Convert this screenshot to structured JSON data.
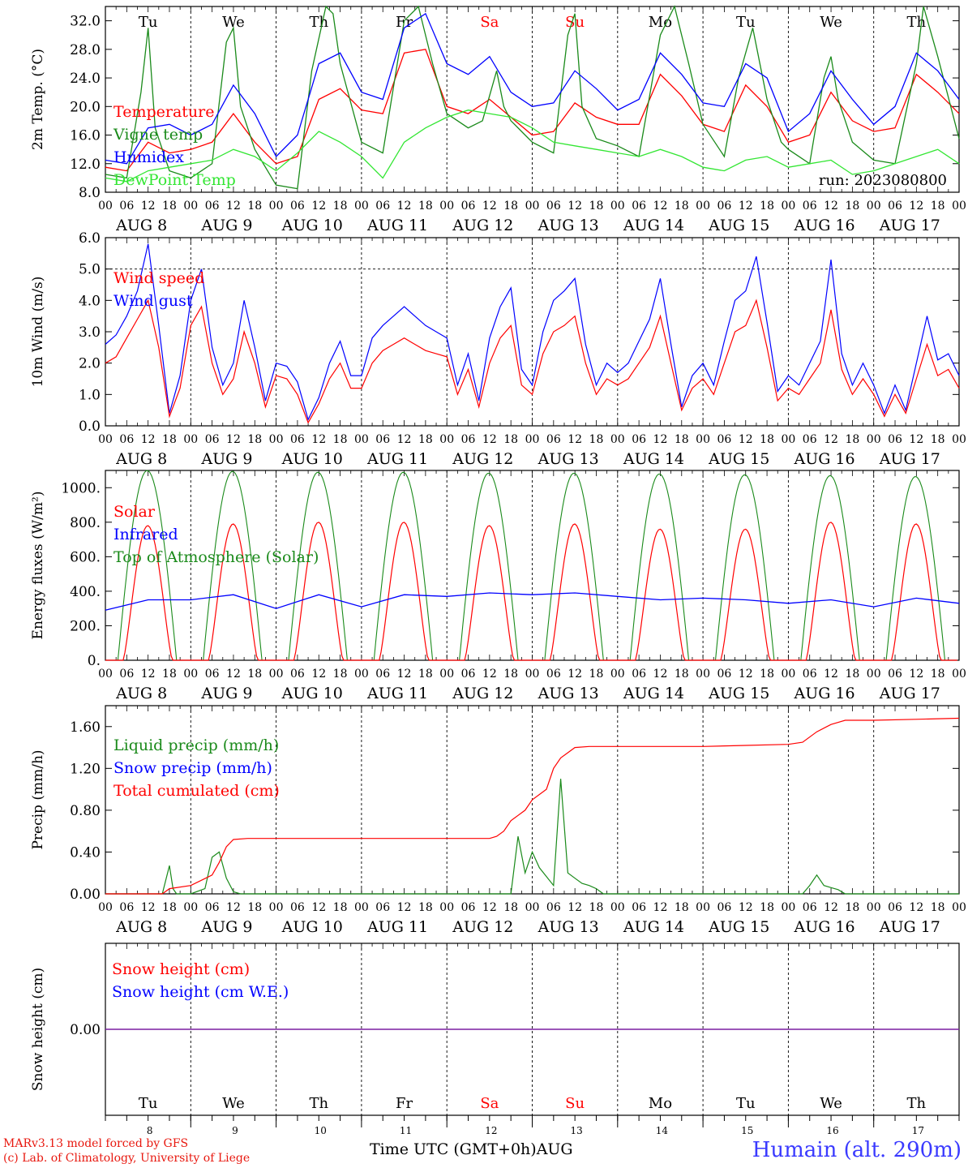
{
  "colors": {
    "red": "#ff0000",
    "green": "#1a8a1a",
    "lightgreen": "#33e633",
    "blue": "#0000ff",
    "purple": "#7a1fa0",
    "black": "#000000"
  },
  "days": [
    "AUG  8",
    "AUG  9",
    "AUG 10",
    "AUG 11",
    "AUG 12",
    "AUG 13",
    "AUG 14",
    "AUG 15",
    "AUG 16",
    "AUG 17"
  ],
  "weekdays": [
    "Tu",
    "We",
    "Th",
    "Fr",
    "Sa",
    "Su",
    "Mo",
    "Tu",
    "We",
    "Th"
  ],
  "weekday_colors": [
    "#000000",
    "#000000",
    "#000000",
    "#000000",
    "#ff0000",
    "#ff0000",
    "#000000",
    "#000000",
    "#000000",
    "#000000"
  ],
  "hour_ticks": [
    "00",
    "06",
    "12",
    "18"
  ],
  "bottom_day_numbers": [
    "8",
    "9",
    "10",
    "11",
    "12",
    "13",
    "14",
    "15",
    "16",
    "17"
  ],
  "footer": {
    "credit_line1": "MARv3.13 model forced by GFS",
    "credit_line2": "(c) Lab. of Climatology, University of Liege",
    "time_label": "Time UTC (GMT+0h)AUG",
    "station": "Humain (alt. 290m)"
  },
  "chart_data": [
    {
      "type": "line",
      "ylabel": "2m Temp. (°C)",
      "ylim": [
        8,
        34
      ],
      "yticks": [
        "8.0",
        "12.0",
        "16.0",
        "20.0",
        "24.0",
        "28.0",
        "32.0"
      ],
      "annotation": "run: 2023080800",
      "x_unit": "hours since Aug 8 00 UTC",
      "legend": [
        "Temperature",
        "Vigne temp",
        "Humidex",
        "DewPoint Temp"
      ],
      "series": [
        {
          "name": "Temperature",
          "color": "#ff0000",
          "x": [
            0,
            6,
            12,
            18,
            24,
            30,
            36,
            42,
            48,
            54,
            60,
            66,
            72,
            78,
            84,
            90,
            96,
            102,
            108,
            114,
            120,
            126,
            132,
            138,
            144,
            150,
            156,
            162,
            168,
            174,
            180,
            186,
            192,
            198,
            204,
            210,
            216,
            222,
            228,
            234,
            240
          ],
          "y": [
            11.5,
            11.0,
            15.0,
            13.5,
            14.0,
            15.0,
            19.0,
            15.0,
            12.0,
            13.0,
            21.0,
            22.5,
            19.5,
            19.0,
            27.5,
            28.0,
            20.0,
            19.0,
            21.0,
            18.5,
            16.0,
            16.5,
            20.5,
            18.5,
            17.5,
            17.5,
            24.5,
            21.5,
            17.5,
            16.5,
            23.0,
            20.0,
            15.0,
            16.0,
            22.0,
            18.0,
            16.5,
            17.0,
            24.5,
            22.0,
            19.0
          ]
        },
        {
          "name": "Vigne temp",
          "color": "#1a8a1a",
          "x": [
            0,
            6,
            10,
            12,
            14,
            18,
            24,
            30,
            34,
            36,
            38,
            42,
            48,
            54,
            58,
            62,
            64,
            66,
            72,
            78,
            84,
            88,
            92,
            96,
            102,
            106,
            110,
            112,
            114,
            118,
            120,
            126,
            130,
            132,
            134,
            138,
            144,
            150,
            156,
            160,
            164,
            168,
            174,
            178,
            182,
            184,
            186,
            190,
            192,
            198,
            202,
            204,
            206,
            210,
            216,
            222,
            228,
            230,
            234,
            240
          ],
          "y": [
            10.5,
            10.0,
            22.0,
            31.0,
            17.0,
            11.0,
            10.0,
            12.0,
            29.0,
            31.0,
            20.0,
            14.0,
            9.0,
            8.5,
            25.0,
            34.0,
            33.0,
            26.0,
            15.0,
            13.5,
            32.0,
            34.0,
            26.0,
            19.0,
            17.0,
            18.0,
            25.0,
            20.0,
            18.0,
            16.0,
            15.0,
            13.5,
            30.0,
            33.0,
            20.0,
            15.5,
            14.5,
            13.0,
            30.0,
            34.0,
            26.0,
            17.5,
            13.0,
            24.0,
            31.0,
            26.0,
            21.0,
            15.0,
            14.0,
            12.0,
            24.0,
            27.0,
            21.0,
            15.0,
            12.5,
            12.0,
            26.0,
            34.0,
            27.0,
            15.5
          ]
        },
        {
          "name": "Humidex",
          "color": "#0000ff",
          "x": [
            0,
            6,
            12,
            18,
            24,
            30,
            36,
            42,
            48,
            54,
            60,
            66,
            72,
            78,
            84,
            90,
            96,
            102,
            108,
            114,
            120,
            126,
            132,
            138,
            144,
            150,
            156,
            162,
            168,
            174,
            180,
            186,
            192,
            198,
            204,
            210,
            216,
            222,
            228,
            234,
            240
          ],
          "y": [
            12.5,
            12.0,
            17.0,
            17.5,
            16.0,
            17.5,
            23.0,
            19.0,
            13.0,
            16.0,
            26.0,
            27.5,
            22.0,
            21.0,
            31.0,
            33.0,
            26.0,
            24.5,
            27.0,
            22.0,
            20.0,
            20.5,
            25.0,
            22.5,
            19.5,
            21.0,
            27.5,
            24.5,
            20.5,
            20.0,
            26.0,
            24.0,
            16.5,
            19.0,
            25.0,
            21.0,
            17.5,
            20.0,
            27.5,
            25.0,
            21.0
          ]
        },
        {
          "name": "DewPoint Temp",
          "color": "#33e633",
          "x": [
            0,
            6,
            12,
            18,
            24,
            30,
            36,
            42,
            48,
            54,
            60,
            66,
            72,
            78,
            84,
            90,
            96,
            102,
            108,
            114,
            120,
            126,
            132,
            138,
            144,
            150,
            156,
            162,
            168,
            174,
            180,
            186,
            192,
            198,
            204,
            210,
            216,
            222,
            228,
            234,
            240
          ],
          "y": [
            10.0,
            9.5,
            11.0,
            11.5,
            12.0,
            12.5,
            14.0,
            13.0,
            11.0,
            13.5,
            16.5,
            15.0,
            13.0,
            10.0,
            15.0,
            17.0,
            18.5,
            19.5,
            19.0,
            18.5,
            17.0,
            15.0,
            14.5,
            14.0,
            13.5,
            13.0,
            14.0,
            13.0,
            11.5,
            11.0,
            12.5,
            13.0,
            11.5,
            12.0,
            12.5,
            10.5,
            11.0,
            12.0,
            13.0,
            14.0,
            12.0
          ]
        }
      ]
    },
    {
      "type": "line",
      "ylabel": "10m Wind (m/s)",
      "ylim": [
        0,
        6
      ],
      "yticks": [
        "0.0",
        "1.0",
        "2.0",
        "3.0",
        "4.0",
        "5.0",
        "6.0"
      ],
      "reference_line": 5.0,
      "legend": [
        "Wind speed",
        "Wind gust"
      ],
      "series": [
        {
          "name": "Wind speed",
          "color": "#ff0000",
          "x": [
            0,
            3,
            6,
            9,
            12,
            15,
            18,
            21,
            24,
            27,
            30,
            33,
            36,
            39,
            42,
            45,
            48,
            51,
            54,
            57,
            60,
            63,
            66,
            69,
            72,
            75,
            78,
            81,
            84,
            87,
            90,
            93,
            96,
            99,
            102,
            105,
            108,
            111,
            114,
            117,
            120,
            123,
            126,
            129,
            132,
            135,
            138,
            141,
            144,
            147,
            150,
            153,
            156,
            159,
            162,
            165,
            168,
            171,
            174,
            177,
            180,
            183,
            186,
            189,
            192,
            195,
            198,
            201,
            204,
            207,
            210,
            213,
            216,
            219,
            222,
            225,
            228,
            231,
            234,
            237,
            240
          ],
          "y": [
            2.0,
            2.2,
            2.8,
            3.4,
            4.0,
            2.5,
            0.3,
            1.2,
            3.2,
            3.8,
            2.0,
            1.0,
            1.5,
            3.0,
            2.0,
            0.6,
            1.6,
            1.5,
            1.0,
            0.1,
            0.7,
            1.5,
            2.0,
            1.2,
            1.2,
            2.0,
            2.4,
            2.6,
            2.8,
            2.6,
            2.4,
            2.3,
            2.2,
            1.0,
            1.8,
            0.6,
            2.0,
            2.8,
            3.2,
            1.3,
            1.0,
            2.3,
            3.0,
            3.2,
            3.5,
            2.0,
            1.0,
            1.5,
            1.3,
            1.5,
            2.0,
            2.5,
            3.5,
            2.0,
            0.5,
            1.2,
            1.5,
            1.0,
            2.0,
            3.0,
            3.2,
            4.0,
            2.5,
            0.8,
            1.2,
            1.0,
            1.5,
            2.0,
            3.7,
            1.8,
            1.0,
            1.5,
            1.0,
            0.3,
            1.0,
            0.4,
            1.5,
            2.6,
            1.6,
            1.8,
            1.2
          ]
        },
        {
          "name": "Wind gust",
          "color": "#0000ff",
          "x": [
            0,
            3,
            6,
            9,
            12,
            15,
            18,
            21,
            24,
            27,
            30,
            33,
            36,
            39,
            42,
            45,
            48,
            51,
            54,
            57,
            60,
            63,
            66,
            69,
            72,
            75,
            78,
            81,
            84,
            87,
            90,
            93,
            96,
            99,
            102,
            105,
            108,
            111,
            114,
            117,
            120,
            123,
            126,
            129,
            132,
            135,
            138,
            141,
            144,
            147,
            150,
            153,
            156,
            159,
            162,
            165,
            168,
            171,
            174,
            177,
            180,
            183,
            186,
            189,
            192,
            195,
            198,
            201,
            204,
            207,
            210,
            213,
            216,
            219,
            222,
            225,
            228,
            231,
            234,
            237,
            240
          ],
          "y": [
            2.6,
            2.9,
            3.5,
            4.3,
            5.8,
            3.2,
            0.4,
            1.6,
            4.0,
            5.0,
            2.5,
            1.3,
            2.0,
            4.0,
            2.5,
            0.8,
            2.0,
            1.9,
            1.4,
            0.2,
            0.9,
            2.0,
            2.7,
            1.6,
            1.6,
            2.8,
            3.2,
            3.5,
            3.8,
            3.5,
            3.2,
            3.0,
            2.8,
            1.3,
            2.3,
            0.8,
            2.8,
            3.8,
            4.4,
            1.8,
            1.3,
            3.0,
            4.0,
            4.3,
            4.7,
            2.6,
            1.3,
            2.0,
            1.7,
            2.0,
            2.7,
            3.4,
            4.7,
            2.6,
            0.6,
            1.6,
            2.0,
            1.3,
            2.7,
            4.0,
            4.3,
            5.4,
            3.3,
            1.1,
            1.6,
            1.3,
            2.0,
            2.7,
            5.3,
            2.3,
            1.3,
            2.0,
            1.3,
            0.4,
            1.3,
            0.5,
            2.0,
            3.5,
            2.1,
            2.3,
            1.6
          ]
        }
      ]
    },
    {
      "type": "line",
      "ylabel": "Energy fluxes (W/m²)",
      "ylim": [
        0,
        1100
      ],
      "yticks": [
        "0.",
        "200.",
        "400.",
        "600.",
        "800.",
        "1000."
      ],
      "legend": [
        "Solar",
        "Infrared",
        "Top of Atmosphere (Solar)"
      ],
      "toa_peaks": [
        1100,
        1095,
        1090,
        1090,
        1085,
        1085,
        1080,
        1075,
        1070,
        1065
      ],
      "solar_peaks": [
        780,
        790,
        800,
        800,
        780,
        790,
        760,
        760,
        800,
        790
      ],
      "infrared": {
        "name": "Infrared",
        "color": "#0000ff",
        "x": [
          0,
          12,
          24,
          36,
          48,
          60,
          72,
          84,
          96,
          108,
          120,
          132,
          144,
          156,
          168,
          180,
          192,
          204,
          216,
          228,
          240
        ],
        "y": [
          290,
          350,
          350,
          380,
          300,
          380,
          310,
          380,
          370,
          390,
          380,
          390,
          370,
          350,
          360,
          350,
          330,
          350,
          310,
          360,
          330
        ]
      }
    },
    {
      "type": "line",
      "ylabel": "Precip (mm/h)",
      "ylim": [
        0,
        1.8
      ],
      "yticks": [
        "0.00",
        "0.40",
        "0.80",
        "1.20",
        "1.60"
      ],
      "legend": [
        "Liquid precip (mm/h)",
        "Snow precip (mm/h)",
        "Total cumulated (cm)"
      ],
      "series": [
        {
          "name": "Liquid precip (mm/h)",
          "color": "#1a8a1a",
          "x": [
            0,
            16,
            18,
            19,
            20,
            24,
            28,
            30,
            32,
            34,
            36,
            38,
            110,
            114,
            116,
            118,
            120,
            122,
            126,
            128,
            130,
            132,
            134,
            136,
            138,
            140,
            170,
            196,
            198,
            200,
            202,
            204,
            206,
            208,
            240
          ],
          "y": [
            0,
            0,
            0.27,
            0.05,
            0,
            0,
            0.05,
            0.35,
            0.4,
            0.15,
            0.02,
            0,
            0,
            0,
            0.55,
            0.2,
            0.4,
            0.25,
            0.08,
            1.1,
            0.2,
            0.15,
            0.1,
            0.08,
            0.05,
            0,
            0,
            0,
            0.08,
            0.18,
            0.08,
            0.06,
            0.04,
            0,
            0
          ]
        },
        {
          "name": "Total cumulated (cm)",
          "color": "#ff0000",
          "x": [
            0,
            16,
            18,
            24,
            30,
            32,
            34,
            36,
            40,
            48,
            96,
            108,
            110,
            112,
            114,
            116,
            118,
            120,
            124,
            126,
            128,
            130,
            132,
            136,
            144,
            168,
            180,
            192,
            196,
            200,
            204,
            208,
            216,
            228,
            240
          ],
          "y": [
            0,
            0,
            0.05,
            0.08,
            0.18,
            0.3,
            0.45,
            0.52,
            0.53,
            0.53,
            0.53,
            0.53,
            0.55,
            0.6,
            0.7,
            0.75,
            0.8,
            0.9,
            1.0,
            1.2,
            1.3,
            1.35,
            1.4,
            1.41,
            1.41,
            1.41,
            1.42,
            1.43,
            1.45,
            1.55,
            1.62,
            1.66,
            1.66,
            1.67,
            1.68
          ]
        }
      ]
    },
    {
      "type": "line",
      "ylabel": "Snow height (cm)",
      "yticks": [
        "0.00"
      ],
      "legend": [
        "Snow height (cm)",
        "Snow height (cm W.E.)"
      ],
      "series": [
        {
          "name": "Snow height (cm)",
          "color": "#ff0000",
          "x": [
            0,
            240
          ],
          "y": [
            0,
            0
          ]
        },
        {
          "name": "Snow height (cm W.E.)",
          "color": "#0000ff",
          "x": [
            0,
            240
          ],
          "y": [
            0,
            0
          ]
        }
      ]
    }
  ]
}
